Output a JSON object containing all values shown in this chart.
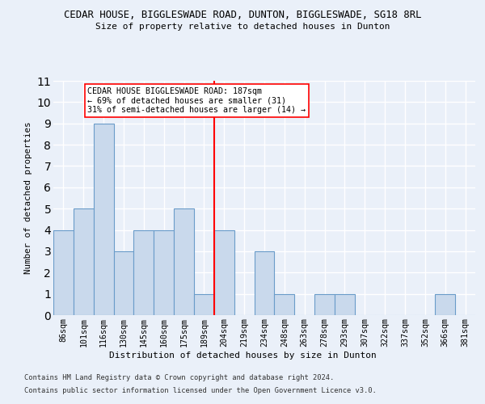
{
  "title": "CEDAR HOUSE, BIGGLESWADE ROAD, DUNTON, BIGGLESWADE, SG18 8RL",
  "subtitle": "Size of property relative to detached houses in Dunton",
  "xlabel": "Distribution of detached houses by size in Dunton",
  "ylabel": "Number of detached properties",
  "categories": [
    "86sqm",
    "101sqm",
    "116sqm",
    "130sqm",
    "145sqm",
    "160sqm",
    "175sqm",
    "189sqm",
    "204sqm",
    "219sqm",
    "234sqm",
    "248sqm",
    "263sqm",
    "278sqm",
    "293sqm",
    "307sqm",
    "322sqm",
    "337sqm",
    "352sqm",
    "366sqm",
    "381sqm"
  ],
  "values": [
    4,
    5,
    9,
    3,
    4,
    4,
    5,
    1,
    4,
    0,
    3,
    1,
    0,
    1,
    1,
    0,
    0,
    0,
    0,
    1,
    0
  ],
  "bar_color": "#c9d9ec",
  "bar_edge_color": "#6a9cc9",
  "reference_line_index": 7,
  "annotation_text": "CEDAR HOUSE BIGGLESWADE ROAD: 187sqm\n← 69% of detached houses are smaller (31)\n31% of semi-detached houses are larger (14) →",
  "ylim": [
    0,
    11
  ],
  "yticks": [
    0,
    1,
    2,
    3,
    4,
    5,
    6,
    7,
    8,
    9,
    10,
    11
  ],
  "background_color": "#eaf0f9",
  "grid_color": "#ffffff",
  "footer_line1": "Contains HM Land Registry data © Crown copyright and database right 2024.",
  "footer_line2": "Contains public sector information licensed under the Open Government Licence v3.0."
}
